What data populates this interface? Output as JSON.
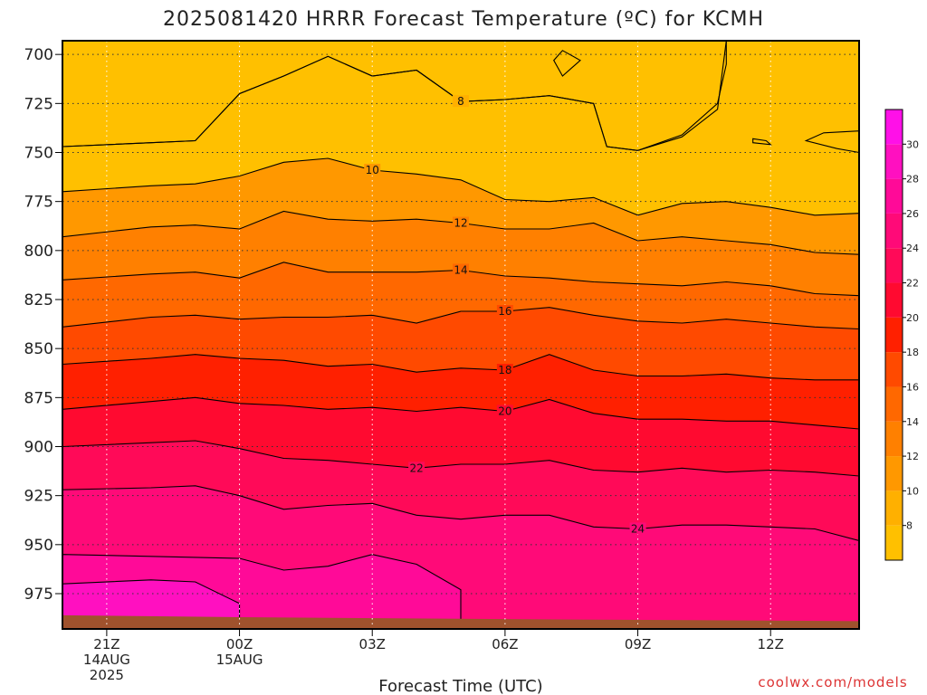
{
  "chart_data": {
    "type": "heatmap",
    "title": "2025081420 HRRR Forecast Temperature (ºC) for KCMH",
    "xlabel": "Forecast Time (UTC)",
    "ylabel": "",
    "credit": "coolwx.com/models",
    "y_ticks": [
      700,
      725,
      750,
      775,
      800,
      825,
      850,
      875,
      900,
      925,
      950,
      975
    ],
    "y_range_hpa": [
      693,
      993
    ],
    "x_ticks": [
      {
        "hour": 0,
        "lines": [
          "21Z",
          "14AUG",
          "2025"
        ]
      },
      {
        "hour": 3,
        "lines": [
          "00Z",
          "15AUG"
        ]
      },
      {
        "hour": 6,
        "lines": [
          "03Z"
        ]
      },
      {
        "hour": 9,
        "lines": [
          "06Z"
        ]
      },
      {
        "hour": 12,
        "lines": [
          "09Z"
        ]
      },
      {
        "hour": 15,
        "lines": [
          "12Z"
        ]
      }
    ],
    "x_range_hours": [
      -1,
      17
    ],
    "colorbar": {
      "levels": [
        6,
        8,
        10,
        12,
        14,
        16,
        18,
        20,
        22,
        24,
        26,
        28,
        30,
        32
      ],
      "labels": [
        "8",
        "10",
        "12",
        "14",
        "16",
        "18",
        "20",
        "22",
        "24",
        "26",
        "28",
        "30"
      ],
      "colors": [
        "#ffc000",
        "#ffb000",
        "#ff9800",
        "#ff8000",
        "#ff6800",
        "#ff4a00",
        "#ff2000",
        "#ff0a30",
        "#ff0a58",
        "#ff0a78",
        "#ff0a98",
        "#ff10c0",
        "#ff10e8"
      ]
    },
    "contours": [
      {
        "value": 8,
        "label_hour": 8,
        "points": [
          [
            -1,
            747
          ],
          [
            1,
            745
          ],
          [
            2,
            744
          ],
          [
            3,
            720
          ],
          [
            4,
            711
          ],
          [
            5,
            701
          ],
          [
            6,
            711
          ],
          [
            7,
            708
          ],
          [
            8,
            724
          ],
          [
            9,
            723
          ],
          [
            10,
            721
          ],
          [
            11,
            725
          ],
          [
            11.3,
            747
          ],
          [
            12,
            749
          ],
          [
            13,
            742
          ],
          [
            13.8,
            728
          ],
          [
            14,
            693
          ]
        ]
      },
      {
        "value": 10,
        "label_hour": 6,
        "points": [
          [
            -1,
            770
          ],
          [
            1,
            767
          ],
          [
            2,
            766
          ],
          [
            3,
            762
          ],
          [
            4,
            755
          ],
          [
            5,
            753
          ],
          [
            6,
            759
          ],
          [
            7,
            761
          ],
          [
            8,
            764
          ],
          [
            9,
            774
          ],
          [
            10,
            775
          ],
          [
            11,
            773
          ],
          [
            12,
            782
          ],
          [
            13,
            776
          ],
          [
            14,
            775
          ],
          [
            15,
            778
          ],
          [
            16,
            782
          ],
          [
            17,
            781
          ]
        ]
      },
      {
        "value": 12,
        "label_hour": 8,
        "points": [
          [
            -1,
            793
          ],
          [
            1,
            788
          ],
          [
            2,
            787
          ],
          [
            3,
            789
          ],
          [
            4,
            780
          ],
          [
            5,
            784
          ],
          [
            6,
            785
          ],
          [
            7,
            784
          ],
          [
            8,
            786
          ],
          [
            9,
            789
          ],
          [
            10,
            789
          ],
          [
            11,
            786
          ],
          [
            12,
            795
          ],
          [
            13,
            793
          ],
          [
            14,
            795
          ],
          [
            15,
            797
          ],
          [
            16,
            801
          ],
          [
            17,
            802
          ]
        ]
      },
      {
        "value": 14,
        "label_hour": 8,
        "points": [
          [
            -1,
            815
          ],
          [
            1,
            812
          ],
          [
            2,
            811
          ],
          [
            3,
            814
          ],
          [
            4,
            806
          ],
          [
            5,
            811
          ],
          [
            6,
            811
          ],
          [
            7,
            811
          ],
          [
            8,
            810
          ],
          [
            9,
            813
          ],
          [
            10,
            814
          ],
          [
            11,
            816
          ],
          [
            12,
            817
          ],
          [
            13,
            818
          ],
          [
            14,
            816
          ],
          [
            15,
            818
          ],
          [
            16,
            822
          ],
          [
            17,
            823
          ]
        ]
      },
      {
        "value": 16,
        "label_hour": 9,
        "points": [
          [
            -1,
            839
          ],
          [
            1,
            834
          ],
          [
            2,
            833
          ],
          [
            3,
            835
          ],
          [
            4,
            834
          ],
          [
            5,
            834
          ],
          [
            6,
            833
          ],
          [
            7,
            837
          ],
          [
            8,
            831
          ],
          [
            9,
            831
          ],
          [
            10,
            829
          ],
          [
            11,
            833
          ],
          [
            12,
            836
          ],
          [
            13,
            837
          ],
          [
            14,
            835
          ],
          [
            15,
            837
          ],
          [
            16,
            839
          ],
          [
            17,
            840
          ]
        ]
      },
      {
        "value": 18,
        "label_hour": 9,
        "points": [
          [
            -1,
            858
          ],
          [
            1,
            855
          ],
          [
            2,
            853
          ],
          [
            3,
            855
          ],
          [
            4,
            856
          ],
          [
            5,
            859
          ],
          [
            6,
            858
          ],
          [
            7,
            862
          ],
          [
            8,
            860
          ],
          [
            9,
            861
          ],
          [
            10,
            853
          ],
          [
            11,
            861
          ],
          [
            12,
            864
          ],
          [
            13,
            864
          ],
          [
            14,
            863
          ],
          [
            15,
            865
          ],
          [
            16,
            866
          ],
          [
            17,
            866
          ]
        ]
      },
      {
        "value": 20,
        "label_hour": 9,
        "points": [
          [
            -1,
            881
          ],
          [
            1,
            877
          ],
          [
            2,
            875
          ],
          [
            3,
            878
          ],
          [
            4,
            879
          ],
          [
            5,
            881
          ],
          [
            6,
            880
          ],
          [
            7,
            882
          ],
          [
            8,
            880
          ],
          [
            9,
            882
          ],
          [
            10,
            876
          ],
          [
            11,
            883
          ],
          [
            12,
            886
          ],
          [
            13,
            886
          ],
          [
            14,
            887
          ],
          [
            15,
            887
          ],
          [
            16,
            889
          ],
          [
            17,
            891
          ]
        ]
      },
      {
        "value": 22,
        "label_hour": 7,
        "points": [
          [
            -1,
            900
          ],
          [
            1,
            898
          ],
          [
            2,
            897
          ],
          [
            3,
            901
          ],
          [
            4,
            906
          ],
          [
            5,
            907
          ],
          [
            6,
            909
          ],
          [
            7,
            911
          ],
          [
            8,
            909
          ],
          [
            9,
            909
          ],
          [
            10,
            907
          ],
          [
            11,
            912
          ],
          [
            12,
            913
          ],
          [
            13,
            911
          ],
          [
            14,
            913
          ],
          [
            15,
            912
          ],
          [
            16,
            913
          ],
          [
            17,
            915
          ]
        ]
      },
      {
        "value": 24,
        "label_hour": 12,
        "points": [
          [
            -1,
            922
          ],
          [
            1,
            921
          ],
          [
            2,
            920
          ],
          [
            3,
            925
          ],
          [
            4,
            932
          ],
          [
            5,
            930
          ],
          [
            6,
            929
          ],
          [
            7,
            935
          ],
          [
            8,
            937
          ],
          [
            9,
            935
          ],
          [
            10,
            935
          ],
          [
            11,
            941
          ],
          [
            12,
            942
          ],
          [
            13,
            940
          ],
          [
            14,
            940
          ],
          [
            15,
            941
          ],
          [
            16,
            942
          ],
          [
            17,
            948
          ]
        ]
      }
    ]
  }
}
